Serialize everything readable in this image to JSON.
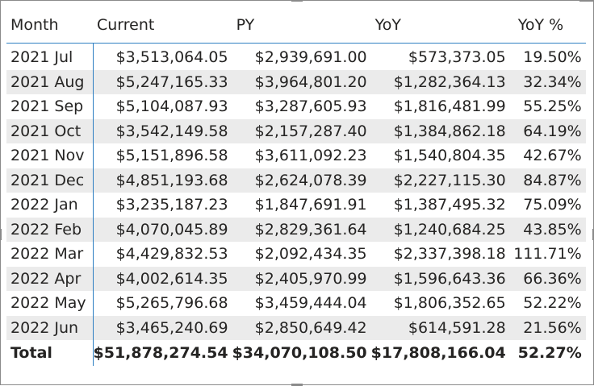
{
  "table": {
    "headers": [
      "Month",
      "Current",
      "PY",
      "YoY",
      "YoY %"
    ],
    "rows": [
      {
        "month": "2021 Jul",
        "current": "$3,513,064.05",
        "py": "$2,939,691.00",
        "yoy": "$573,373.05",
        "yoy_pct": "19.50%"
      },
      {
        "month": "2021 Aug",
        "current": "$5,247,165.33",
        "py": "$3,964,801.20",
        "yoy": "$1,282,364.13",
        "yoy_pct": "32.34%"
      },
      {
        "month": "2021 Sep",
        "current": "$5,104,087.93",
        "py": "$3,287,605.93",
        "yoy": "$1,816,481.99",
        "yoy_pct": "55.25%"
      },
      {
        "month": "2021 Oct",
        "current": "$3,542,149.58",
        "py": "$2,157,287.40",
        "yoy": "$1,384,862.18",
        "yoy_pct": "64.19%"
      },
      {
        "month": "2021 Nov",
        "current": "$5,151,896.58",
        "py": "$3,611,092.23",
        "yoy": "$1,540,804.35",
        "yoy_pct": "42.67%"
      },
      {
        "month": "2021 Dec",
        "current": "$4,851,193.68",
        "py": "$2,624,078.39",
        "yoy": "$2,227,115.30",
        "yoy_pct": "84.87%"
      },
      {
        "month": "2022 Jan",
        "current": "$3,235,187.23",
        "py": "$1,847,691.91",
        "yoy": "$1,387,495.32",
        "yoy_pct": "75.09%"
      },
      {
        "month": "2022 Feb",
        "current": "$4,070,045.89",
        "py": "$2,829,361.64",
        "yoy": "$1,240,684.25",
        "yoy_pct": "43.85%"
      },
      {
        "month": "2022 Mar",
        "current": "$4,429,832.53",
        "py": "$2,092,434.35",
        "yoy": "$2,337,398.18",
        "yoy_pct": "111.71%"
      },
      {
        "month": "2022 Apr",
        "current": "$4,002,614.35",
        "py": "$2,405,970.99",
        "yoy": "$1,596,643.36",
        "yoy_pct": "66.36%"
      },
      {
        "month": "2022 May",
        "current": "$5,265,796.68",
        "py": "$3,459,444.04",
        "yoy": "$1,806,352.65",
        "yoy_pct": "52.22%"
      },
      {
        "month": "2022 Jun",
        "current": "$3,465,240.69",
        "py": "$2,850,649.42",
        "yoy": "$614,591.28",
        "yoy_pct": "21.56%"
      }
    ],
    "total": {
      "month": "Total",
      "current": "$51,878,274.54",
      "py": "$34,070,108.50",
      "yoy": "$17,808,166.04",
      "yoy_pct": "52.27%"
    }
  },
  "colors": {
    "header_rule": "#2e7fc2",
    "alt_row": "#ebebeb",
    "frame": "#8a8a8a"
  }
}
